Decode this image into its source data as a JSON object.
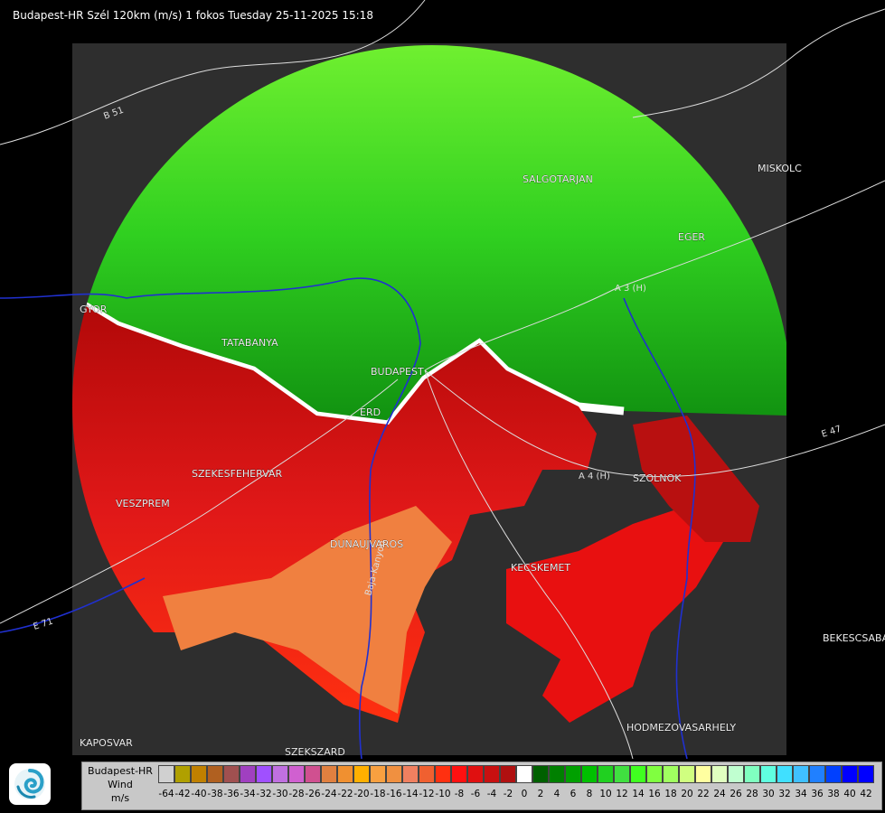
{
  "title": "Budapest-HR Szél 120km (m/s) 1 fokos Tuesday 25-11-2025 15:18",
  "map": {
    "cities": [
      {
        "name": "MISKOLC"
      },
      {
        "name": "SALGOTARJAN"
      },
      {
        "name": "EGER"
      },
      {
        "name": "TATABANYA"
      },
      {
        "name": "BUDAPEST"
      },
      {
        "name": "ERD"
      },
      {
        "name": "SZEKESFEHERVAR"
      },
      {
        "name": "VESZPREM"
      },
      {
        "name": "DUNAUJVAROS"
      },
      {
        "name": "KECSKEMET"
      },
      {
        "name": "SZOLNOK"
      },
      {
        "name": "HODMEZOVASARHELY"
      },
      {
        "name": "BEKESCSABA"
      },
      {
        "name": "KAPOSVAR"
      },
      {
        "name": "SZEKSZARD"
      },
      {
        "name": "GYOR"
      }
    ],
    "roads": [
      "B 51",
      "A 3 (H)",
      "A 4 (H)",
      "E 71",
      "Baja-Kanyon",
      "E 47"
    ],
    "colors": {
      "approaching_green": "#22c022",
      "receding_red": "#e01010",
      "no_data": "#2e2e2e",
      "background": "#000000",
      "rivers": "#2030d0",
      "borders": "#ffffff"
    }
  },
  "legend": {
    "source": "Budapest-HR",
    "product": "Wind",
    "unit": "m/s",
    "colors": [
      "#d0d0d0",
      "#b0a000",
      "#c08000",
      "#b06020",
      "#a05050",
      "#a040c0",
      "#a050ff",
      "#c070e0",
      "#d060d0",
      "#d05090",
      "#e08040",
      "#f09030",
      "#ffb000",
      "#f8a040",
      "#f09040",
      "#f08060",
      "#f06030",
      "#ff3010",
      "#ff1010",
      "#e01010",
      "#c81010",
      "#b01010",
      "#ffffff",
      "#006000",
      "#008000",
      "#00a000",
      "#00c000",
      "#20d020",
      "#40e040",
      "#40ff20",
      "#80ff40",
      "#a0ff60",
      "#d0ff80",
      "#ffffa0",
      "#e0ffc0",
      "#c0ffd0",
      "#80ffc0",
      "#60ffe0",
      "#40e0ff",
      "#40c0ff",
      "#2080ff",
      "#0040ff",
      "#0000ff",
      "#0000ff"
    ],
    "labels": [
      "-64",
      "-42",
      "-40",
      "-38",
      "-36",
      "-34",
      "-32",
      "-30",
      "-28",
      "-26",
      "-24",
      "-22",
      "-20",
      "-18",
      "-16",
      "-14",
      "-12",
      "-10",
      "-8",
      "-6",
      "-4",
      "-2",
      "0",
      "2",
      "4",
      "6",
      "8",
      "10",
      "12",
      "14",
      "16",
      "18",
      "20",
      "22",
      "24",
      "26",
      "28",
      "30",
      "32",
      "34",
      "36",
      "38",
      "40",
      "42"
    ]
  }
}
